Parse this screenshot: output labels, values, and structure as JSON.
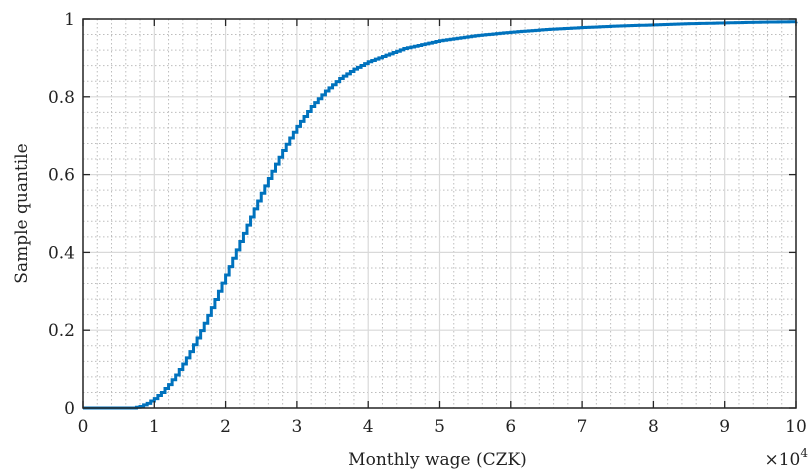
{
  "chart_data": {
    "type": "line",
    "title": "",
    "xlabel": "Monthly wage (CZK)",
    "ylabel": "Sample quantile",
    "x_multiplier_label": "×10",
    "x_multiplier_exponent": "4",
    "xlim": [
      0,
      10
    ],
    "ylim": [
      0,
      1
    ],
    "x_ticks": [
      "0",
      "1",
      "2",
      "3",
      "4",
      "5",
      "6",
      "7",
      "8",
      "9",
      "10"
    ],
    "y_ticks": [
      "0",
      "0.2",
      "0.4",
      "0.6",
      "0.8",
      "1"
    ],
    "grid": "major and minor",
    "line_color": "#0072BD",
    "series": [
      {
        "x": [
          0,
          0.5,
          0.7,
          0.8,
          0.9,
          1.0,
          1.1,
          1.2,
          1.3,
          1.4,
          1.5,
          1.6,
          1.7,
          1.8,
          1.9,
          2.0,
          2.1,
          2.2,
          2.3,
          2.4,
          2.5,
          2.6,
          2.7,
          2.8,
          2.9,
          3.0,
          3.2,
          3.4,
          3.6,
          3.8,
          4.0,
          4.5,
          5.0,
          5.5,
          6.0,
          6.5,
          7.0,
          7.5,
          8.0,
          8.5,
          9.0,
          9.5,
          10.0
        ],
        "y": [
          0.0,
          0.0,
          0.0,
          0.004,
          0.012,
          0.024,
          0.04,
          0.06,
          0.085,
          0.113,
          0.145,
          0.18,
          0.218,
          0.258,
          0.3,
          0.342,
          0.385,
          0.428,
          0.47,
          0.512,
          0.552,
          0.59,
          0.627,
          0.662,
          0.694,
          0.724,
          0.775,
          0.815,
          0.847,
          0.871,
          0.89,
          0.924,
          0.944,
          0.957,
          0.966,
          0.973,
          0.978,
          0.982,
          0.985,
          0.988,
          0.99,
          0.992,
          0.993
        ]
      }
    ]
  }
}
